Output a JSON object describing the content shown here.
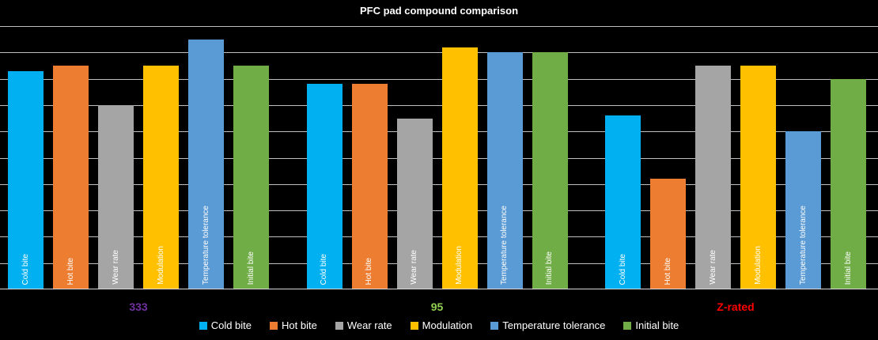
{
  "title": "PFC pad compound comparison",
  "colors": {
    "background": "#000000",
    "gridline": "#BFBFBF",
    "axis_line": "#D9D9D9",
    "title_text": "#FFFFFF",
    "legend_text": "#FFFFFF",
    "bar_label_text": "#FFFFFF"
  },
  "chart_data": {
    "type": "bar",
    "title": "PFC pad compound comparison",
    "xlabel": "",
    "ylabel": "",
    "ylim": [
      0,
      10
    ],
    "gridline_step": 1,
    "grid": true,
    "y_tick_labels_visible": false,
    "legend_position": "bottom",
    "bar_label_style": "series name inside bar at base, rotated 90° bottom-to-top, white",
    "categories": [
      "333",
      "95",
      "Z-rated"
    ],
    "category_label_colors": [
      "#7030A0",
      "#92D050",
      "#FF0000"
    ],
    "series": [
      {
        "name": "Cold bite",
        "color": "#00B0F0",
        "values": [
          8.3,
          7.8,
          6.6
        ]
      },
      {
        "name": "Hot bite",
        "color": "#ED7D31",
        "values": [
          8.5,
          7.8,
          4.2
        ]
      },
      {
        "name": "Wear rate",
        "color": "#A5A5A5",
        "values": [
          7.0,
          6.5,
          8.5
        ]
      },
      {
        "name": "Modulation",
        "color": "#FFC000",
        "values": [
          8.5,
          9.2,
          8.5
        ]
      },
      {
        "name": "Temperature tolerance",
        "color": "#5B9BD5",
        "values": [
          9.5,
          9.0,
          6.0
        ]
      },
      {
        "name": "Initial bite",
        "color": "#70AD47",
        "values": [
          8.5,
          9.0,
          8.0
        ]
      }
    ]
  }
}
